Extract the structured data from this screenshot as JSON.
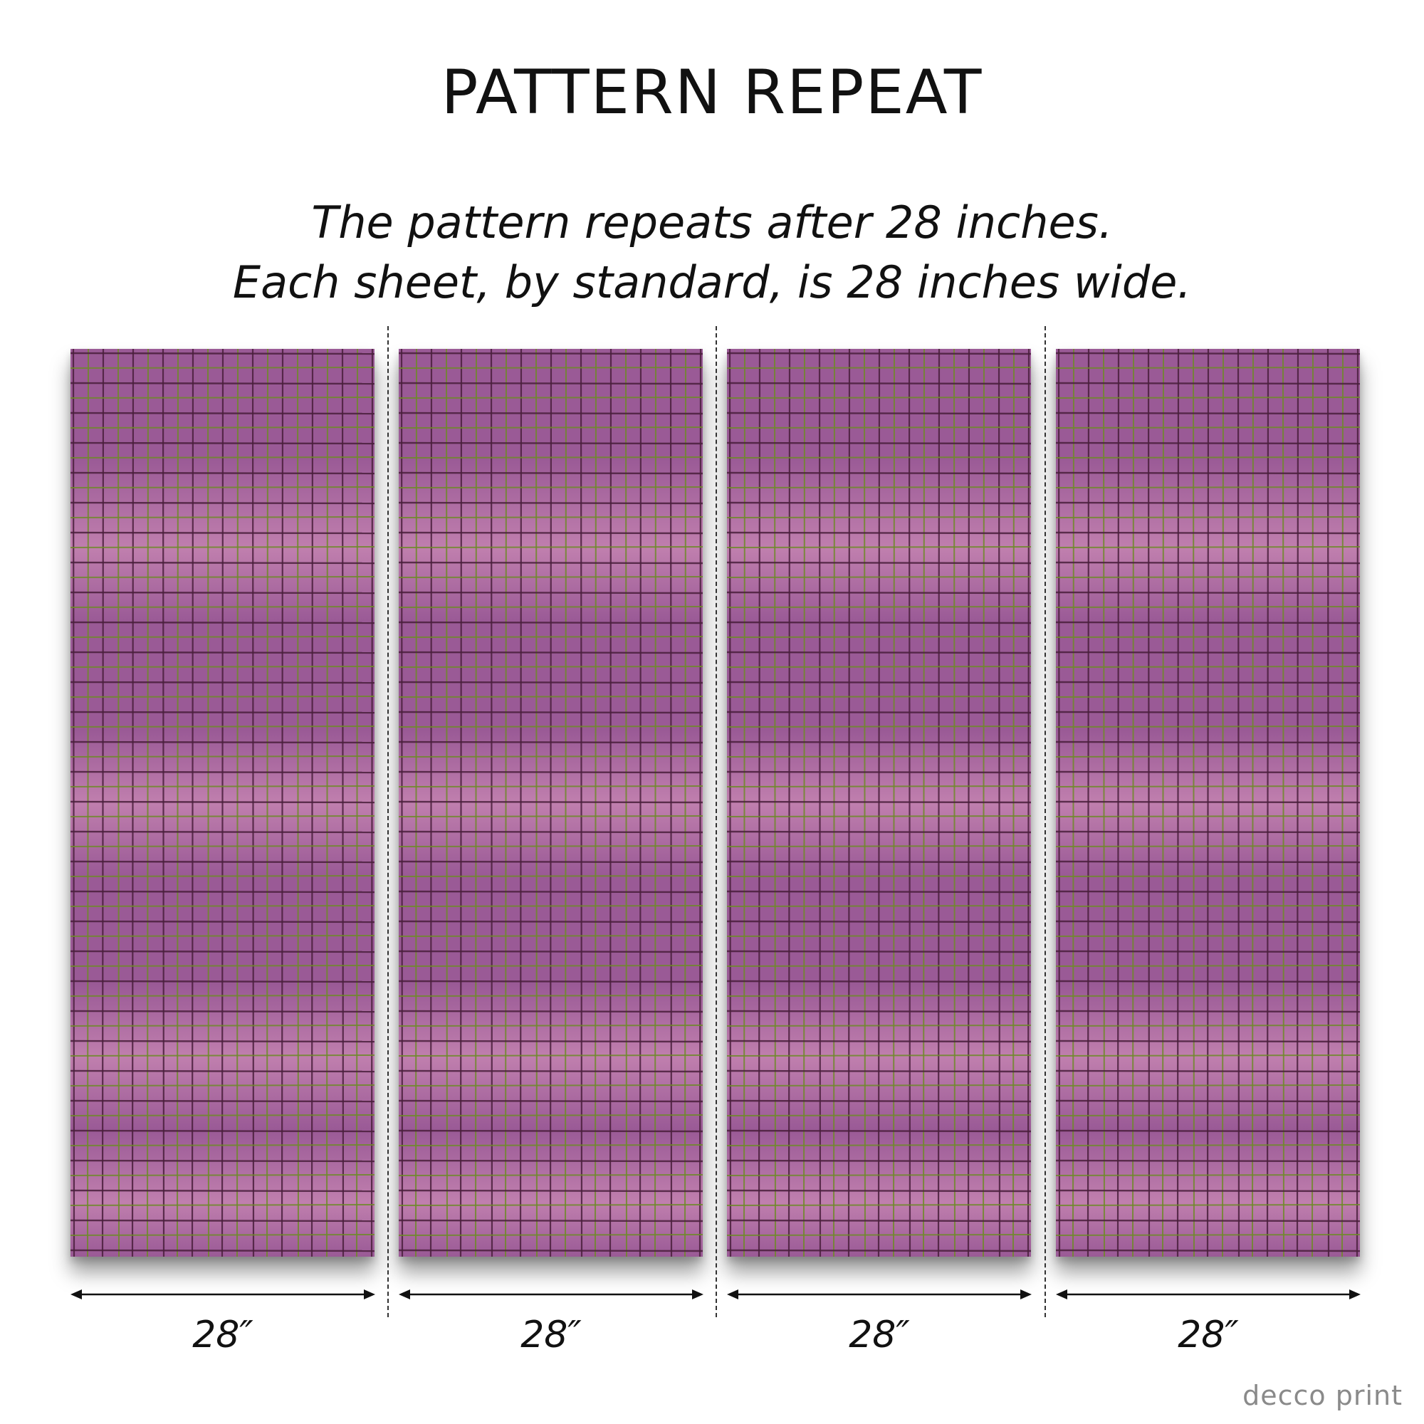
{
  "title": "PATTERN REPEAT",
  "subtitle": {
    "line1": "The pattern repeats after 28 inches.",
    "line2": "Each sheet, by standard, is 28 inches wide."
  },
  "sheets": [
    {
      "width_label": "28″"
    },
    {
      "width_label": "28″"
    },
    {
      "width_label": "28″"
    },
    {
      "width_label": "28″"
    }
  ],
  "pattern": {
    "description_colors": {
      "base": "#9a5a96",
      "light": "#c07fae",
      "dark_line": "#4a1f3c",
      "green_line": "#6f8a2a"
    }
  },
  "brand": {
    "logo_text": "decco print"
  }
}
